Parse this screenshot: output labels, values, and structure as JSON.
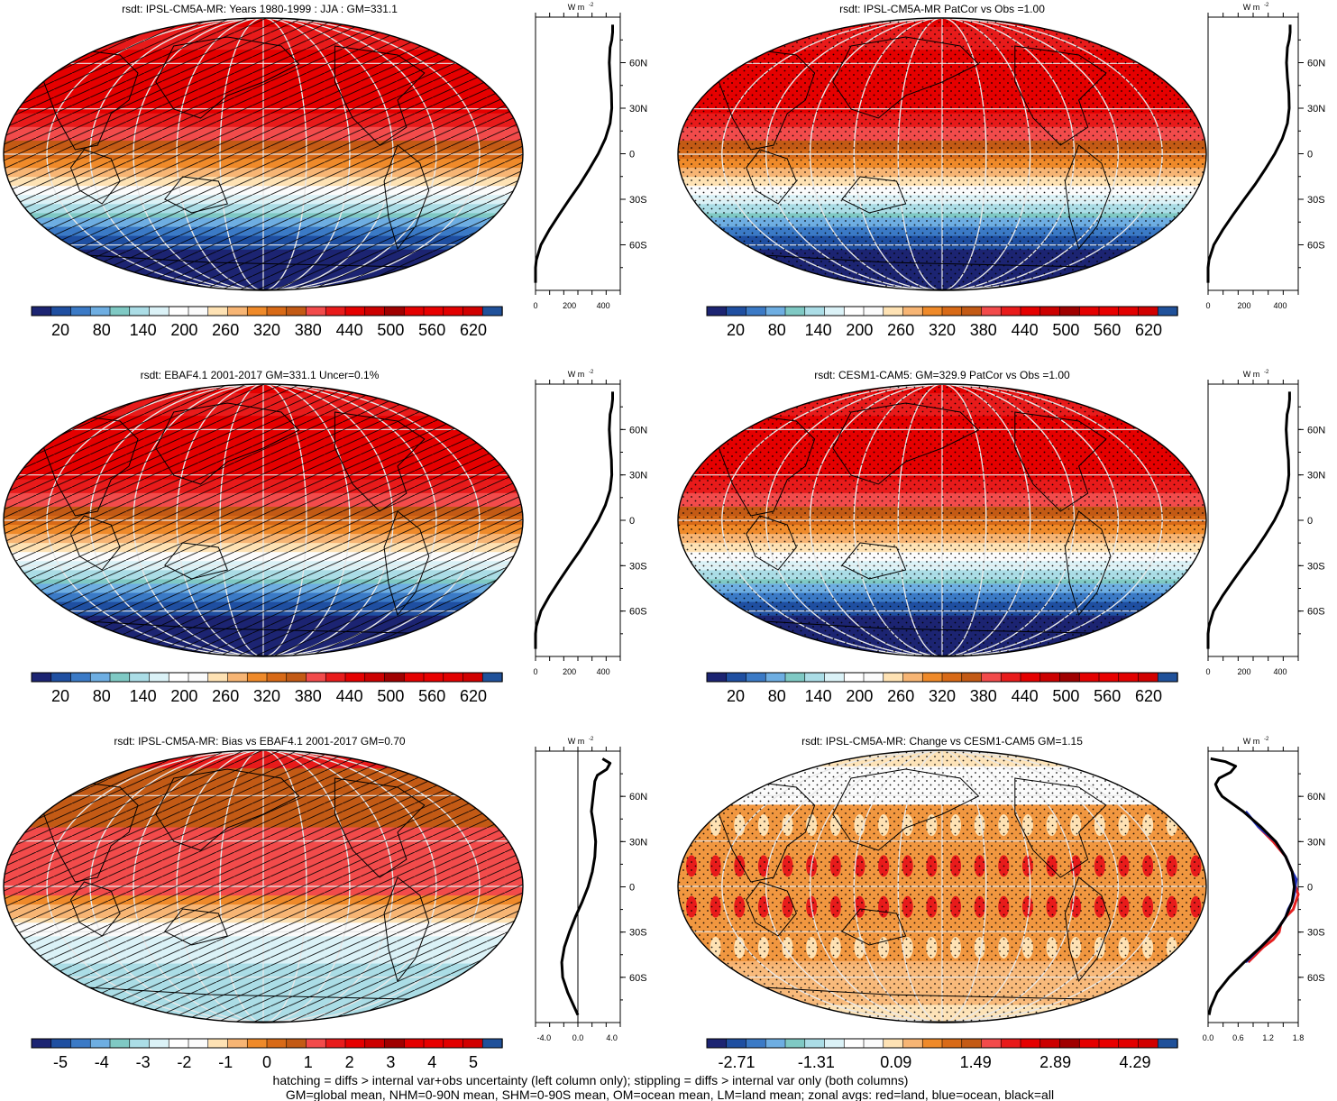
{
  "footnote": {
    "line1": "hatching = diffs > internal var+obs uncertainty (left column only); stippling = diffs > internal var only (both columns)",
    "line2": "GM=global mean, NHM=0-90N mean, SHM=0-90S mean, OM=ocean mean, LM=land mean; zonal avgs: red=land, blue=ocean, black=all"
  },
  "colors": {
    "palette": [
      "#1c2472",
      "#1f4fa1",
      "#3b7ac6",
      "#6eaee2",
      "#7fc9c4",
      "#abdde6",
      "#dbf2f7",
      "#ffffff",
      "#fbfbfb",
      "#fee2b4",
      "#f7b574",
      "#ef8a2a",
      "#d86a17",
      "#c35a15",
      "#f24b4b",
      "#e81b1b",
      "#e50000",
      "#cc0000",
      "#a00000",
      "#e40000",
      "#e80000",
      "#e20000",
      "#d10000",
      "#20519a"
    ]
  },
  "chart_data": [
    {
      "id": "p1",
      "type": "map",
      "title": "rsdt: IPSL-CM5A-MR: Years 1980-1999 : JJA : GM=331.1",
      "pattern": "hatch",
      "colorbar_labels": [
        "20",
        "80",
        "140",
        "200",
        "260",
        "320",
        "380",
        "440",
        "500",
        "560",
        "620"
      ],
      "zonal": {
        "unit_label": "W m",
        "unit_sup": "-2",
        "xlim": [
          0,
          500
        ],
        "xtick_values": [
          0,
          200,
          400
        ],
        "xtick_labels": [
          "0",
          "200",
          "400"
        ],
        "ytick_values": [
          60,
          30,
          0,
          -30,
          -60
        ],
        "ytick_labels": [
          "60N",
          "30N",
          "0",
          "30S",
          "60S"
        ],
        "ref_line": null,
        "series": [
          {
            "name": "all",
            "color": "#000000",
            "lat": [
              85,
              80,
              75,
              70,
              60,
              50,
              40,
              30,
              20,
              10,
              0,
              -10,
              -20,
              -30,
              -40,
              -50,
              -60,
              -70,
              -75,
              -80,
              -85
            ],
            "values": [
              455,
              455,
              450,
              440,
              435,
              440,
              448,
              450,
              440,
              412,
              370,
              318,
              262,
              200,
              140,
              82,
              32,
              5,
              0,
              0,
              0
            ]
          }
        ]
      }
    },
    {
      "id": "p2",
      "type": "map",
      "title": "rsdt: IPSL-CM5A-MR PatCor vs Obs =1.00",
      "pattern": "dots",
      "colorbar_labels": [
        "20",
        "80",
        "140",
        "200",
        "260",
        "320",
        "380",
        "440",
        "500",
        "560",
        "620"
      ],
      "zonal": {
        "unit_label": "W m",
        "unit_sup": "-2",
        "xlim": [
          0,
          500
        ],
        "xtick_values": [
          0,
          200,
          400
        ],
        "xtick_labels": [
          "0",
          "200",
          "400"
        ],
        "ytick_values": [
          60,
          30,
          0,
          -30,
          -60
        ],
        "ytick_labels": [
          "60N",
          "30N",
          "0",
          "30S",
          "60S"
        ],
        "ref_line": null,
        "series": [
          {
            "name": "all",
            "color": "#000000",
            "lat": [
              85,
              80,
              75,
              70,
              60,
              50,
              40,
              30,
              20,
              10,
              0,
              -10,
              -20,
              -30,
              -40,
              -50,
              -60,
              -70,
              -75,
              -80,
              -85
            ],
            "values": [
              455,
              455,
              450,
              440,
              435,
              440,
              448,
              450,
              440,
              412,
              370,
              318,
              262,
              200,
              140,
              82,
              32,
              5,
              0,
              0,
              0
            ]
          }
        ]
      }
    },
    {
      "id": "p3",
      "type": "map",
      "title": "rsdt: EBAF4.1 2001-2017 GM=331.1 Uncer=0.1%",
      "pattern": "hatch",
      "colorbar_labels": [
        "20",
        "80",
        "140",
        "200",
        "260",
        "320",
        "380",
        "440",
        "500",
        "560",
        "620"
      ],
      "zonal": {
        "unit_label": "W m",
        "unit_sup": "-2",
        "xlim": [
          0,
          500
        ],
        "xtick_values": [
          0,
          200,
          400
        ],
        "xtick_labels": [
          "0",
          "200",
          "400"
        ],
        "ytick_values": [
          60,
          30,
          0,
          -30,
          -60
        ],
        "ytick_labels": [
          "60N",
          "30N",
          "0",
          "30S",
          "60S"
        ],
        "ref_line": null,
        "series": [
          {
            "name": "all",
            "color": "#000000",
            "lat": [
              85,
              80,
              75,
              70,
              60,
              50,
              40,
              30,
              20,
              10,
              0,
              -10,
              -20,
              -30,
              -40,
              -50,
              -60,
              -70,
              -75,
              -80,
              -85
            ],
            "values": [
              455,
              455,
              450,
              440,
              435,
              440,
              448,
              450,
              440,
              412,
              370,
              318,
              262,
              200,
              140,
              82,
              32,
              5,
              0,
              0,
              0
            ]
          }
        ]
      }
    },
    {
      "id": "p4",
      "type": "map",
      "title": "rsdt: CESM1-CAM5: GM=329.9 PatCor vs Obs =1.00",
      "pattern": "dots",
      "colorbar_labels": [
        "20",
        "80",
        "140",
        "200",
        "260",
        "320",
        "380",
        "440",
        "500",
        "560",
        "620"
      ],
      "zonal": {
        "unit_label": "W m",
        "unit_sup": "-2",
        "xlim": [
          0,
          500
        ],
        "xtick_values": [
          0,
          200,
          400
        ],
        "xtick_labels": [
          "0",
          "200",
          "400"
        ],
        "ytick_values": [
          60,
          30,
          0,
          -30,
          -60
        ],
        "ytick_labels": [
          "60N",
          "30N",
          "0",
          "30S",
          "60S"
        ],
        "ref_line": null,
        "series": [
          {
            "name": "all",
            "color": "#000000",
            "lat": [
              85,
              80,
              75,
              70,
              60,
              50,
              40,
              30,
              20,
              10,
              0,
              -10,
              -20,
              -30,
              -40,
              -50,
              -60,
              -70,
              -75,
              -80,
              -85
            ],
            "values": [
              452,
              452,
              448,
              438,
              433,
              438,
              446,
              448,
              438,
              410,
              368,
              316,
              260,
              198,
              138,
              80,
              30,
              5,
              0,
              0,
              0
            ]
          }
        ]
      }
    },
    {
      "id": "p5",
      "type": "map",
      "title": "rsdt: IPSL-CM5A-MR: Bias vs EBAF4.1 2001-2017 GM=0.70",
      "pattern": "hatch",
      "colorbar_labels": [
        "-5",
        "-4",
        "-3",
        "-2",
        "-1",
        "0",
        "1",
        "2",
        "3",
        "4",
        "5"
      ],
      "zonal": {
        "unit_label": "W m",
        "unit_sup": "-2",
        "xlim": [
          -5,
          5
        ],
        "xtick_values": [
          -4,
          0,
          4
        ],
        "xtick_labels": [
          "-4.0",
          "0.0",
          "4.0"
        ],
        "ytick_values": [
          60,
          30,
          0,
          -30,
          -60
        ],
        "ytick_labels": [
          "60N",
          "30N",
          "0",
          "30S",
          "60S"
        ],
        "ref_line": 0,
        "series": [
          {
            "name": "all",
            "color": "#000000",
            "lat": [
              85,
              82,
              78,
              74,
              70,
              65,
              60,
              50,
              40,
              30,
              20,
              10,
              0,
              -10,
              -20,
              -30,
              -40,
              -50,
              -60,
              -70,
              -80,
              -85
            ],
            "values": [
              2.9,
              3.8,
              3.4,
              2.3,
              2.0,
              1.9,
              1.8,
              1.6,
              1.9,
              2.1,
              2.0,
              1.7,
              1.2,
              0.5,
              -0.3,
              -1.0,
              -1.6,
              -1.9,
              -1.8,
              -1.2,
              -0.4,
              0.0
            ]
          }
        ]
      }
    },
    {
      "id": "p6",
      "type": "map",
      "title": "rsdt: IPSL-CM5A-MR: Change vs CESM1-CAM5 GM=1.15",
      "pattern": "dots",
      "colorbar_labels": [
        "-2.71",
        "-1.31",
        "0.09",
        "1.49",
        "2.89",
        "4.29"
      ],
      "zonal": {
        "unit_label": "W m",
        "unit_sup": "-2",
        "xlim": [
          0,
          1.8
        ],
        "xtick_values": [
          0,
          0.6,
          1.2,
          1.8
        ],
        "xtick_labels": [
          "0.0",
          "0.6",
          "1.2",
          "1.8"
        ],
        "ytick_values": [
          60,
          30,
          0,
          -30,
          -60
        ],
        "ytick_labels": [
          "60N",
          "30N",
          "0",
          "30S",
          "60S"
        ],
        "ref_line": null,
        "series": [
          {
            "name": "land",
            "color": "#e52020",
            "lat": [
              40,
              30,
              20,
              10,
              5,
              0,
              -5,
              -10,
              -15,
              -20,
              -25,
              -30,
              -35,
              -40,
              -45,
              -50
            ],
            "values": [
              1.0,
              1.3,
              1.55,
              1.68,
              1.72,
              1.75,
              1.8,
              1.75,
              1.7,
              1.55,
              1.45,
              1.42,
              1.3,
              1.1,
              0.95,
              0.8
            ]
          },
          {
            "name": "ocean",
            "color": "#2030c0",
            "lat": [
              50,
              40,
              30,
              20,
              10,
              5,
              0,
              -5,
              -10,
              -15,
              -20,
              -30,
              -40,
              -50
            ],
            "values": [
              0.75,
              1.0,
              1.35,
              1.55,
              1.68,
              1.76,
              1.74,
              1.72,
              1.68,
              1.6,
              1.55,
              1.35,
              1.05,
              0.75
            ]
          },
          {
            "name": "all",
            "color": "#000000",
            "lat": [
              85,
              83,
              80,
              76,
              72,
              68,
              64,
              60,
              50,
              40,
              30,
              20,
              10,
              0,
              -10,
              -20,
              -30,
              -40,
              -50,
              -60,
              -70,
              -80,
              -85
            ],
            "values": [
              0.05,
              0.35,
              0.55,
              0.45,
              0.22,
              0.15,
              0.2,
              0.28,
              0.7,
              1.05,
              1.35,
              1.55,
              1.68,
              1.72,
              1.68,
              1.55,
              1.35,
              1.05,
              0.72,
              0.42,
              0.18,
              0.05,
              0.02
            ]
          }
        ]
      }
    }
  ]
}
